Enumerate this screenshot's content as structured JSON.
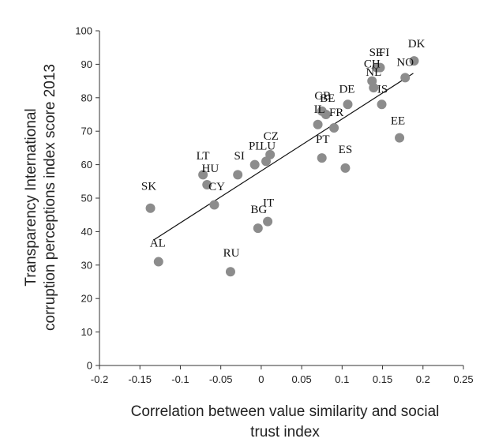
{
  "chart_data": {
    "type": "scatter",
    "title": "",
    "xlabel": "Correlation between value similarity and social trust index",
    "ylabel": "Transparency International corruption perceptions index score 2013",
    "xlim": [
      -0.2,
      0.25
    ],
    "ylim": [
      0,
      100
    ],
    "x_ticks": [
      "-0.2",
      "-0.15",
      "-0.1",
      "-0.05",
      "0",
      "0.05",
      "0.1",
      "0.15",
      "0.2",
      "0.25"
    ],
    "y_ticks": [
      "0",
      "10",
      "20",
      "30",
      "40",
      "50",
      "60",
      "70",
      "80",
      "90",
      "100"
    ],
    "grid": false,
    "legend": "none",
    "marker_color": "#8c8c8c",
    "points": [
      {
        "label": "SK",
        "x": -0.137,
        "y": 47
      },
      {
        "label": "AL",
        "x": -0.127,
        "y": 31
      },
      {
        "label": "LT",
        "x": -0.072,
        "y": 57
      },
      {
        "label": "HU",
        "x": -0.067,
        "y": 54
      },
      {
        "label": "CY",
        "x": -0.058,
        "y": 48
      },
      {
        "label": "SI",
        "x": -0.029,
        "y": 57
      },
      {
        "label": "RU",
        "x": -0.038,
        "y": 28
      },
      {
        "label": "PL",
        "x": -0.008,
        "y": 60
      },
      {
        "label": "LU",
        "x": 0.006,
        "y": 61
      },
      {
        "label": "CZ",
        "x": 0.011,
        "y": 63
      },
      {
        "label": "BG",
        "x": -0.004,
        "y": 41
      },
      {
        "label": "IT",
        "x": 0.008,
        "y": 43
      },
      {
        "label": "IL",
        "x": 0.07,
        "y": 72
      },
      {
        "label": "GB",
        "x": 0.075,
        "y": 76
      },
      {
        "label": "BE",
        "x": 0.08,
        "y": 75
      },
      {
        "label": "FR",
        "x": 0.09,
        "y": 71
      },
      {
        "label": "PT",
        "x": 0.075,
        "y": 62
      },
      {
        "label": "DE",
        "x": 0.107,
        "y": 78
      },
      {
        "label": "ES",
        "x": 0.104,
        "y": 59
      },
      {
        "label": "NL",
        "x": 0.139,
        "y": 83
      },
      {
        "label": "CH",
        "x": 0.137,
        "y": 85
      },
      {
        "label": "SE",
        "x": 0.143,
        "y": 89
      },
      {
        "label": "FI",
        "x": 0.147,
        "y": 89
      },
      {
        "label": "IS",
        "x": 0.149,
        "y": 78
      },
      {
        "label": "EE",
        "x": 0.171,
        "y": 68
      },
      {
        "label": "NO",
        "x": 0.178,
        "y": 86
      },
      {
        "label": "DK",
        "x": 0.189,
        "y": 91
      }
    ],
    "trendline": {
      "type": "linear",
      "x": [
        -0.133,
        0.188
      ],
      "y": [
        37.5,
        87.3
      ]
    }
  }
}
